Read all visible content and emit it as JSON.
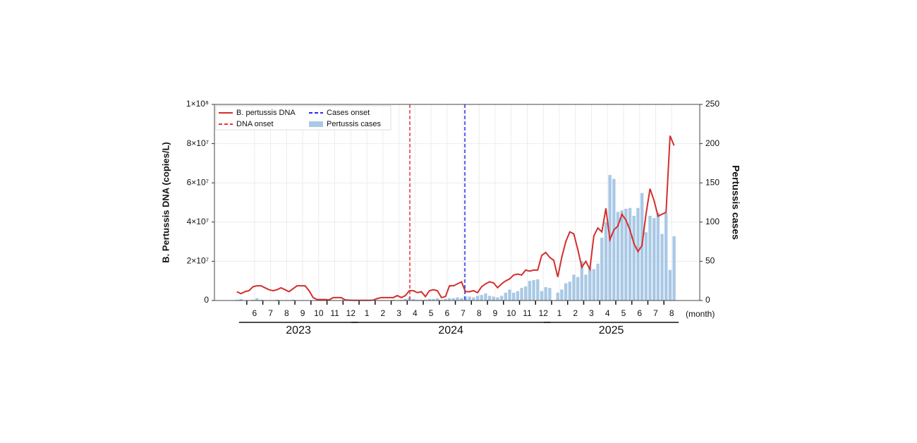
{
  "chart_data": {
    "type": "combo",
    "y_label": "B. Pertussis DNA (copies/L)",
    "y2_label": "Pertussis cases",
    "x_unit_label": "(month)",
    "years": [
      "2023",
      "2024",
      "2025"
    ],
    "x": [
      4.9,
      5.15,
      5.4,
      5.65,
      5.9,
      6.15,
      6.4,
      6.65,
      6.9,
      7.15,
      7.4,
      7.65,
      7.9,
      8.15,
      8.4,
      8.65,
      8.9,
      9.15,
      9.4,
      9.65,
      9.9,
      10.15,
      10.4,
      10.65,
      10.9,
      11.15,
      11.4,
      11.65,
      11.9,
      12.15,
      12.4,
      12.65,
      12.9,
      13.15,
      13.4,
      13.65,
      13.9,
      14.15,
      14.4,
      14.65,
      14.9,
      15.15,
      15.4,
      15.65,
      15.9,
      16.15,
      16.4,
      16.65,
      16.9,
      17.15,
      17.4,
      17.65,
      17.9,
      18.15,
      18.4,
      18.65,
      18.9,
      19.15,
      19.4,
      19.65,
      19.9,
      20.15,
      20.4,
      20.65,
      20.9,
      21.15,
      21.4,
      21.65,
      21.9,
      22.15,
      22.4,
      22.65,
      22.9,
      23.15,
      23.4,
      23.65,
      23.9,
      24.15,
      24.4,
      24.65,
      24.9,
      25.15,
      25.4,
      25.65,
      25.9,
      26.15,
      26.4,
      26.65,
      26.9,
      27.15,
      27.4,
      27.65,
      27.9,
      28.15,
      28.4,
      28.65,
      28.9,
      29.15,
      29.4,
      29.65,
      29.9,
      30.15,
      30.4,
      30.65,
      30.9,
      31.15,
      31.4,
      31.65,
      31.9,
      32.15
    ],
    "series": [
      {
        "name": "B. pertussis DNA",
        "type": "line",
        "color": "#d42e2e",
        "values": [
          4500000,
          3500000,
          4500000,
          5000000,
          7000000,
          7500000,
          7500000,
          6500000,
          5500000,
          5000000,
          5500000,
          6500000,
          5500000,
          4500000,
          6000000,
          7500000,
          7500000,
          7500000,
          5000000,
          1500000,
          500000,
          500000,
          500000,
          300000,
          1500000,
          1500000,
          1500000,
          300000,
          200000,
          100000,
          100000,
          100000,
          100000,
          100000,
          200000,
          1000000,
          1500000,
          1500000,
          1500000,
          1500000,
          2500000,
          1500000,
          2500000,
          5000000,
          5000000,
          4000000,
          4500000,
          2000000,
          5000000,
          5500000,
          5000000,
          1500000,
          2000000,
          7500000,
          7500000,
          8500000,
          9500000,
          4500000,
          4500000,
          5000000,
          4000000,
          7000000,
          8500000,
          9500000,
          9000000,
          6500000,
          8500000,
          10000000,
          11000000,
          13000000,
          13500000,
          13000000,
          15500000,
          15000000,
          15500000,
          15500000,
          23000000,
          24500000,
          22000000,
          20500000,
          12000000,
          22000000,
          30000000,
          35000000,
          34000000,
          26000000,
          17000000,
          20000000,
          16000000,
          33000000,
          37000000,
          35000000,
          47000000,
          31000000,
          36000000,
          38000000,
          44000000,
          41000000,
          36000000,
          29000000,
          25000000,
          28000000,
          44000000,
          57000000,
          51000000,
          43000000,
          44000000,
          45000000,
          84000000,
          79000000
        ]
      },
      {
        "name": "Pertussis cases",
        "type": "bar",
        "axis": "y2",
        "color": "#a9c9e5",
        "values": [
          1,
          2,
          0,
          0,
          1,
          3,
          1,
          0,
          0,
          0,
          1,
          0,
          0,
          0,
          1,
          0,
          0,
          0,
          0,
          0,
          0,
          0,
          0,
          0,
          0,
          0,
          0,
          0,
          0,
          0,
          0,
          0,
          0,
          0,
          0,
          0,
          0,
          0,
          0,
          1,
          0,
          1,
          2,
          4,
          2,
          1,
          1,
          1,
          2,
          2,
          3,
          1,
          2,
          3,
          3,
          4,
          3,
          5,
          5,
          4,
          6,
          7,
          9,
          6,
          5,
          4,
          6,
          10,
          14,
          10,
          12,
          16,
          18,
          25,
          26,
          27,
          12,
          17,
          16,
          0,
          10,
          14,
          22,
          24,
          33,
          30,
          50,
          33,
          42,
          40,
          47,
          80,
          100,
          160,
          155,
          113,
          115,
          117,
          118,
          108,
          118,
          137,
          87,
          108,
          105,
          112,
          85,
          112,
          39,
          82
        ]
      }
    ],
    "vlines": [
      {
        "name": "DNA onset",
        "x": 15.68,
        "color": "#e8343a"
      },
      {
        "name": "Cases onset",
        "x": 19.11,
        "color": "#2b2bea"
      }
    ],
    "xlim": [
      3.5,
      33.75
    ],
    "xticks": [
      6,
      7,
      8,
      9,
      10,
      11,
      12,
      {
        "value": 13,
        "label": "1"
      },
      {
        "value": 14,
        "label": "2"
      },
      {
        "value": 15,
        "label": "3"
      },
      {
        "value": 16,
        "label": "4"
      },
      {
        "value": 17,
        "label": "5"
      },
      {
        "value": 18,
        "label": "6"
      },
      {
        "value": 19,
        "label": "7"
      },
      {
        "value": 20,
        "label": "8"
      },
      {
        "value": 21,
        "label": "9"
      },
      {
        "value": 22,
        "label": "10"
      },
      {
        "value": 23,
        "label": "11"
      },
      {
        "value": 24,
        "label": "12"
      },
      {
        "value": 25,
        "label": "1"
      },
      {
        "value": 26,
        "label": "2"
      },
      {
        "value": 27,
        "label": "3"
      },
      {
        "value": 28,
        "label": "4"
      },
      {
        "value": 29,
        "label": "5"
      },
      {
        "value": 30,
        "label": "6"
      },
      {
        "value": 31,
        "label": "7"
      },
      {
        "value": 32,
        "label": "8"
      }
    ],
    "ylim": [
      0,
      100000000
    ],
    "yticks": [
      0,
      {
        "value": 20000000,
        "label": "2×10⁷"
      },
      {
        "value": 40000000,
        "label": "4×10⁷"
      },
      {
        "value": 60000000,
        "label": "6×10⁷"
      },
      {
        "value": 80000000,
        "label": "8×10⁷"
      },
      {
        "value": 100000000,
        "label": "1×10⁸"
      }
    ],
    "y2lim": [
      0,
      250
    ],
    "y2ticks": [
      0,
      50,
      100,
      150,
      200,
      250
    ],
    "grid": true,
    "legend": "upper left"
  }
}
